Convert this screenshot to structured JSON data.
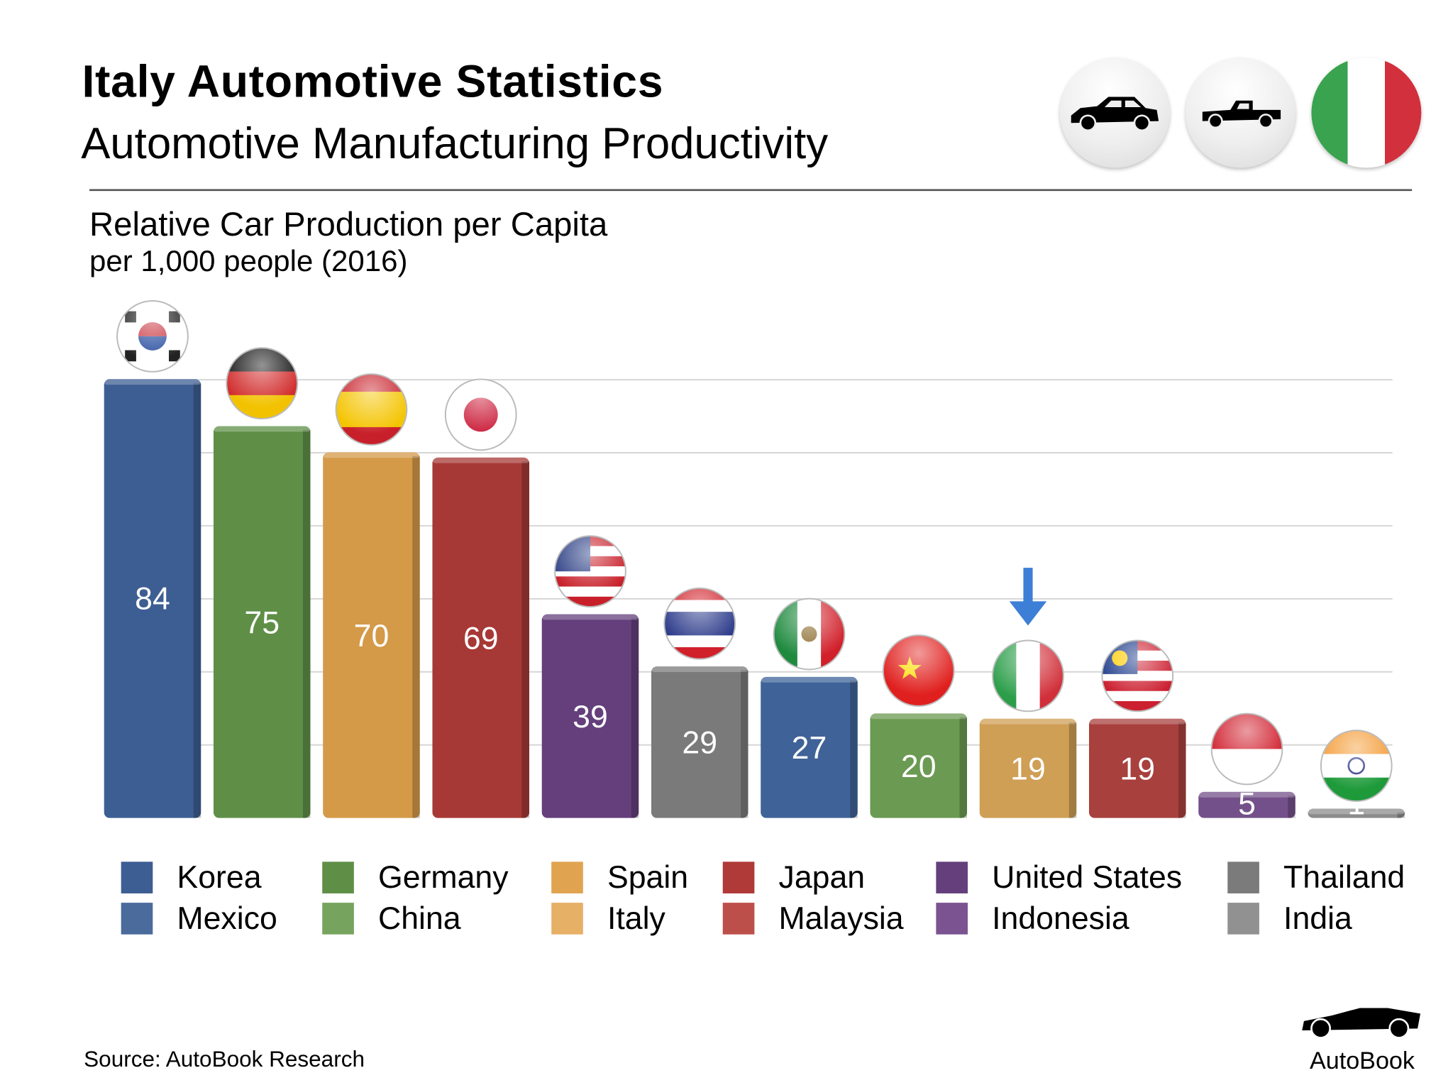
{
  "header": {
    "title": "Italy Automotive Statistics",
    "subtitle": "Automotive Manufacturing Productivity",
    "icons": [
      "car-icon",
      "pickup-truck-icon",
      "italy-flag-icon"
    ]
  },
  "footer": {
    "source": "Source:  AutoBook Research",
    "logo_text": "AutoBook"
  },
  "chart_data": {
    "type": "bar",
    "title": "Relative Car Production per Capita",
    "subtitle": "per 1,000 people (2016)",
    "categories": [
      "Korea",
      "Germany",
      "Spain",
      "Japan",
      "United States",
      "Thailand",
      "Mexico",
      "China",
      "Italy",
      "Malaysia",
      "Indonesia",
      "India"
    ],
    "values": [
      84,
      75,
      70,
      69,
      39,
      29,
      27,
      20,
      19,
      19,
      5,
      1
    ],
    "labels": [
      "84",
      "75",
      "70",
      "69",
      "39",
      "29",
      "27",
      "20",
      "19",
      "19",
      "5",
      "1"
    ],
    "colors": [
      "#3d5e93",
      "#5f8f47",
      "#d49a48",
      "#a63936",
      "#643f7c",
      "#7a7a7a",
      "#3f6398",
      "#6b9a52",
      "#cf9f55",
      "#a8403e",
      "#74508a",
      "#8c8c8c"
    ],
    "flags": [
      "korea-flag-icon",
      "germany-flag-icon",
      "spain-flag-icon",
      "japan-flag-icon",
      "usa-flag-icon",
      "thailand-flag-icon",
      "mexico-flag-icon",
      "china-flag-icon",
      "italy-flag-icon",
      "malaysia-flag-icon",
      "indonesia-flag-icon",
      "india-flag-icon"
    ],
    "highlight": "Italy",
    "highlight_icon": "down-arrow-icon",
    "highlight_color": "#3d7fd6",
    "ylim": [
      0,
      84
    ],
    "grid": true,
    "legend_position": "bottom",
    "legend": [
      {
        "label": "Korea",
        "color": "#3d5e93"
      },
      {
        "label": "Mexico",
        "color": "#4a6b9c"
      },
      {
        "label": "Germany",
        "color": "#5f8f47"
      },
      {
        "label": "China",
        "color": "#76a45e"
      },
      {
        "label": "Spain",
        "color": "#e0a450"
      },
      {
        "label": "Italy",
        "color": "#e6b066"
      },
      {
        "label": "Japan",
        "color": "#b03a37"
      },
      {
        "label": "Malaysia",
        "color": "#bd4f4b"
      },
      {
        "label": "United States",
        "color": "#643f7c"
      },
      {
        "label": "Indonesia",
        "color": "#7b5390"
      },
      {
        "label": "Thailand",
        "color": "#7b7b7b"
      },
      {
        "label": "India",
        "color": "#919191"
      }
    ]
  }
}
